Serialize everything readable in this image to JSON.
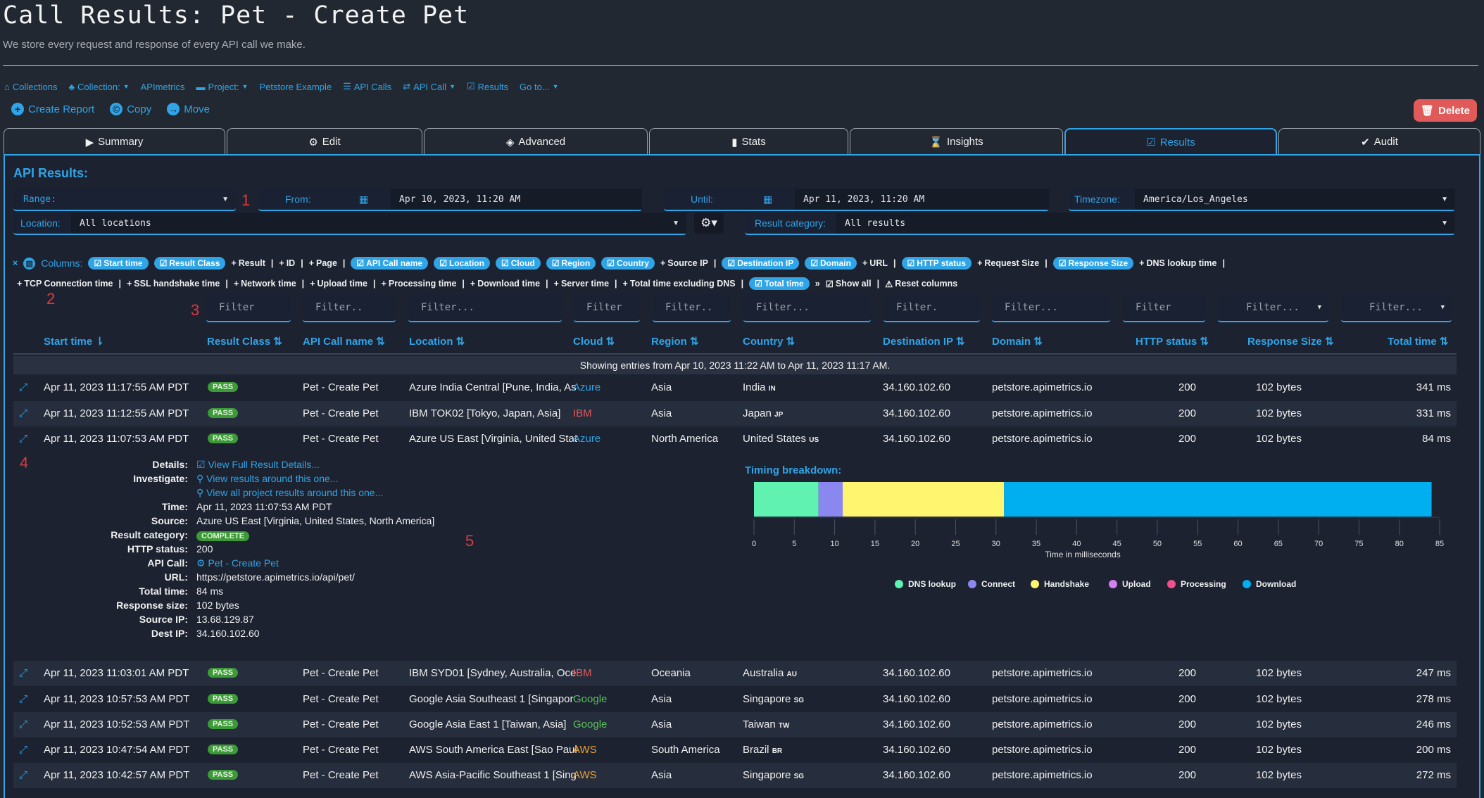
{
  "page": {
    "title": "Call Results: Pet - Create Pet",
    "subtitle": "We store every request and response of every API call we make."
  },
  "breadcrumb": {
    "collections": "Collections",
    "collection": "Collection:",
    "apimetrics": "APImetrics",
    "project": "Project:",
    "petstore": "Petstore Example",
    "api_calls": "API Calls",
    "api_call": "API Call",
    "results": "Results",
    "goto": "Go to..."
  },
  "actions": {
    "create_report": "Create Report",
    "copy": "Copy",
    "move": "Move",
    "delete": "Delete"
  },
  "tabs": [
    "Summary",
    "Edit",
    "Advanced",
    "Stats",
    "Insights",
    "Results",
    "Audit"
  ],
  "section_title": "API Results:",
  "filters": {
    "range_label": "Range:",
    "from_label": "From:",
    "from_value": "Apr 10, 2023, 11:20 AM",
    "until_label": "Until:",
    "until_value": "Apr 11, 2023, 11:20 AM",
    "timezone_label": "Timezone:",
    "timezone_value": "America/Los_Angeles",
    "location_label": "Location:",
    "location_value": "All locations",
    "result_category_label": "Result category:",
    "result_category_value": "All results"
  },
  "annotations": [
    "1",
    "2",
    "3",
    "4",
    "5"
  ],
  "columns": {
    "label": "Columns:",
    "row1": [
      {
        "label": "Start time",
        "on": true
      },
      {
        "label": "Result Class",
        "on": true
      },
      {
        "label": "Result",
        "on": false
      },
      {
        "label": "ID",
        "on": false
      },
      {
        "label": "Page",
        "on": false
      },
      {
        "label": "API Call name",
        "on": true
      },
      {
        "label": "Location",
        "on": true
      },
      {
        "label": "Cloud",
        "on": true
      },
      {
        "label": "Region",
        "on": true
      },
      {
        "label": "Country",
        "on": true
      },
      {
        "label": "Source IP",
        "on": false
      },
      {
        "label": "Destination IP",
        "on": true
      },
      {
        "label": "Domain",
        "on": true
      },
      {
        "label": "URL",
        "on": false
      },
      {
        "label": "HTTP status",
        "on": true
      },
      {
        "label": "Request Size",
        "on": false
      },
      {
        "label": "Response Size",
        "on": true
      },
      {
        "label": "DNS lookup time",
        "on": false
      }
    ],
    "row2": [
      {
        "label": "TCP Connection time",
        "on": false
      },
      {
        "label": "SSL handshake time",
        "on": false
      },
      {
        "label": "Network time",
        "on": false
      },
      {
        "label": "Upload time",
        "on": false
      },
      {
        "label": "Processing time",
        "on": false
      },
      {
        "label": "Download time",
        "on": false
      },
      {
        "label": "Server time",
        "on": false
      },
      {
        "label": "Total time excluding DNS",
        "on": false
      },
      {
        "label": "Total time",
        "on": true
      }
    ],
    "show_all": "Show all",
    "reset": "Reset columns"
  },
  "filter_placeholders": [
    "Filter",
    "Filter..",
    "Filter...",
    "Filter",
    "Filter..",
    "Filter...",
    "Filter.",
    "Filter...",
    "Filter",
    "Filter...",
    "Filter..."
  ],
  "table": {
    "headers": [
      "Start time",
      "Result Class",
      "API Call name",
      "Location",
      "Cloud",
      "Region",
      "Country",
      "Destination IP",
      "Domain",
      "HTTP status",
      "Response Size",
      "Total time"
    ],
    "showing": "Showing entries from Apr 10, 2023 11:22 AM to Apr 11, 2023 11:17 AM.",
    "rows": [
      {
        "start": "Apr 11, 2023 11:17:55 AM PDT",
        "cls": "PASS",
        "name": "Pet - Create Pet",
        "location": "Azure India Central [Pune, India, As",
        "cloud": "Azure",
        "cloud_color": "#2fa4e7",
        "region": "Asia",
        "country": "India",
        "cc": "IN",
        "dest": "34.160.102.60",
        "domain": "petstore.apimetrics.io",
        "status": "200",
        "size": "102 bytes",
        "time": "341 ms"
      },
      {
        "start": "Apr 11, 2023 11:12:55 AM PDT",
        "cls": "PASS",
        "name": "Pet - Create Pet",
        "location": "IBM TOK02 [Tokyo, Japan, Asia]",
        "cloud": "IBM",
        "cloud_color": "#e05a5a",
        "region": "Asia",
        "country": "Japan",
        "cc": "JP",
        "dest": "34.160.102.60",
        "domain": "petstore.apimetrics.io",
        "status": "200",
        "size": "102 bytes",
        "time": "331 ms"
      },
      {
        "start": "Apr 11, 2023 11:07:53 AM PDT",
        "cls": "PASS",
        "name": "Pet - Create Pet",
        "location": "Azure US East [Virginia, United Stat",
        "cloud": "Azure",
        "cloud_color": "#2fa4e7",
        "region": "North America",
        "country": "United States",
        "cc": "US",
        "dest": "34.160.102.60",
        "domain": "petstore.apimetrics.io",
        "status": "200",
        "size": "102 bytes",
        "time": "84 ms"
      },
      {
        "start": "Apr 11, 2023 11:03:01 AM PDT",
        "cls": "PASS",
        "name": "Pet - Create Pet",
        "location": "IBM SYD01 [Sydney, Australia, Oce",
        "cloud": "IBM",
        "cloud_color": "#e05a5a",
        "region": "Oceania",
        "country": "Australia",
        "cc": "AU",
        "dest": "34.160.102.60",
        "domain": "petstore.apimetrics.io",
        "status": "200",
        "size": "102 bytes",
        "time": "247 ms"
      },
      {
        "start": "Apr 11, 2023 10:57:53 AM PDT",
        "cls": "PASS",
        "name": "Pet - Create Pet",
        "location": "Google Asia Southeast 1 [Singapor",
        "cloud": "Google",
        "cloud_color": "#5bc05b",
        "region": "Asia",
        "country": "Singapore",
        "cc": "SG",
        "dest": "34.160.102.60",
        "domain": "petstore.apimetrics.io",
        "status": "200",
        "size": "102 bytes",
        "time": "278 ms"
      },
      {
        "start": "Apr 11, 2023 10:52:53 AM PDT",
        "cls": "PASS",
        "name": "Pet - Create Pet",
        "location": "Google Asia East 1 [Taiwan, Asia]",
        "cloud": "Google",
        "cloud_color": "#5bc05b",
        "region": "Asia",
        "country": "Taiwan",
        "cc": "TW",
        "dest": "34.160.102.60",
        "domain": "petstore.apimetrics.io",
        "status": "200",
        "size": "102 bytes",
        "time": "246 ms"
      },
      {
        "start": "Apr 11, 2023 10:47:54 AM PDT",
        "cls": "PASS",
        "name": "Pet - Create Pet",
        "location": "AWS South America East [Sao Paul",
        "cloud": "AWS",
        "cloud_color": "#f0a030",
        "region": "South America",
        "country": "Brazil",
        "cc": "BR",
        "dest": "34.160.102.60",
        "domain": "petstore.apimetrics.io",
        "status": "200",
        "size": "102 bytes",
        "time": "200 ms"
      },
      {
        "start": "Apr 11, 2023 10:42:57 AM PDT",
        "cls": "PASS",
        "name": "Pet - Create Pet",
        "location": "AWS Asia-Pacific Southeast 1 [Sing",
        "cloud": "AWS",
        "cloud_color": "#f0a030",
        "region": "Asia",
        "country": "Singapore",
        "cc": "SG",
        "dest": "34.160.102.60",
        "domain": "petstore.apimetrics.io",
        "status": "200",
        "size": "102 bytes",
        "time": "272 ms"
      }
    ]
  },
  "details": {
    "labels": {
      "details": "Details:",
      "investigate": "Investigate:",
      "time": "Time:",
      "source": "Source:",
      "result_category": "Result category:",
      "http_status": "HTTP status:",
      "api_call": "API Call:",
      "url": "URL:",
      "total_time": "Total time:",
      "response_size": "Response size:",
      "source_ip": "Source IP:",
      "dest_ip": "Dest IP:"
    },
    "view_full": "View Full Result Details...",
    "view_around": "View results around this one...",
    "view_project": "View all project results around this one...",
    "time": "Apr 11, 2023 11:07:53 AM PDT",
    "source": "Azure US East [Virginia, United States, North America]",
    "result_category": "COMPLETE",
    "http_status": "200",
    "api_call": "Pet - Create Pet",
    "url": "https://petstore.apimetrics.io/api/pet/",
    "total_time": "84 ms",
    "response_size": "102 bytes",
    "source_ip": "13.68.129.87",
    "dest_ip": "34.160.102.60"
  },
  "chart_data": {
    "type": "bar",
    "title": "Timing breakdown:",
    "xlabel": "Time in milliseconds",
    "xlim": [
      0,
      85
    ],
    "xticks": [
      0,
      5,
      10,
      15,
      20,
      25,
      30,
      35,
      40,
      45,
      50,
      55,
      60,
      65,
      70,
      75,
      80,
      85
    ],
    "series": [
      {
        "name": "DNS lookup",
        "value": 8,
        "color": "#5ff2b0"
      },
      {
        "name": "Connect",
        "value": 3,
        "color": "#8a87f0"
      },
      {
        "name": "Handshake",
        "value": 20,
        "color": "#fff56e"
      },
      {
        "name": "Upload",
        "value": 0,
        "color": "#d37ff0"
      },
      {
        "name": "Processing",
        "value": 0,
        "color": "#f0508c"
      },
      {
        "name": "Download",
        "value": 53,
        "color": "#00aff0"
      }
    ]
  }
}
